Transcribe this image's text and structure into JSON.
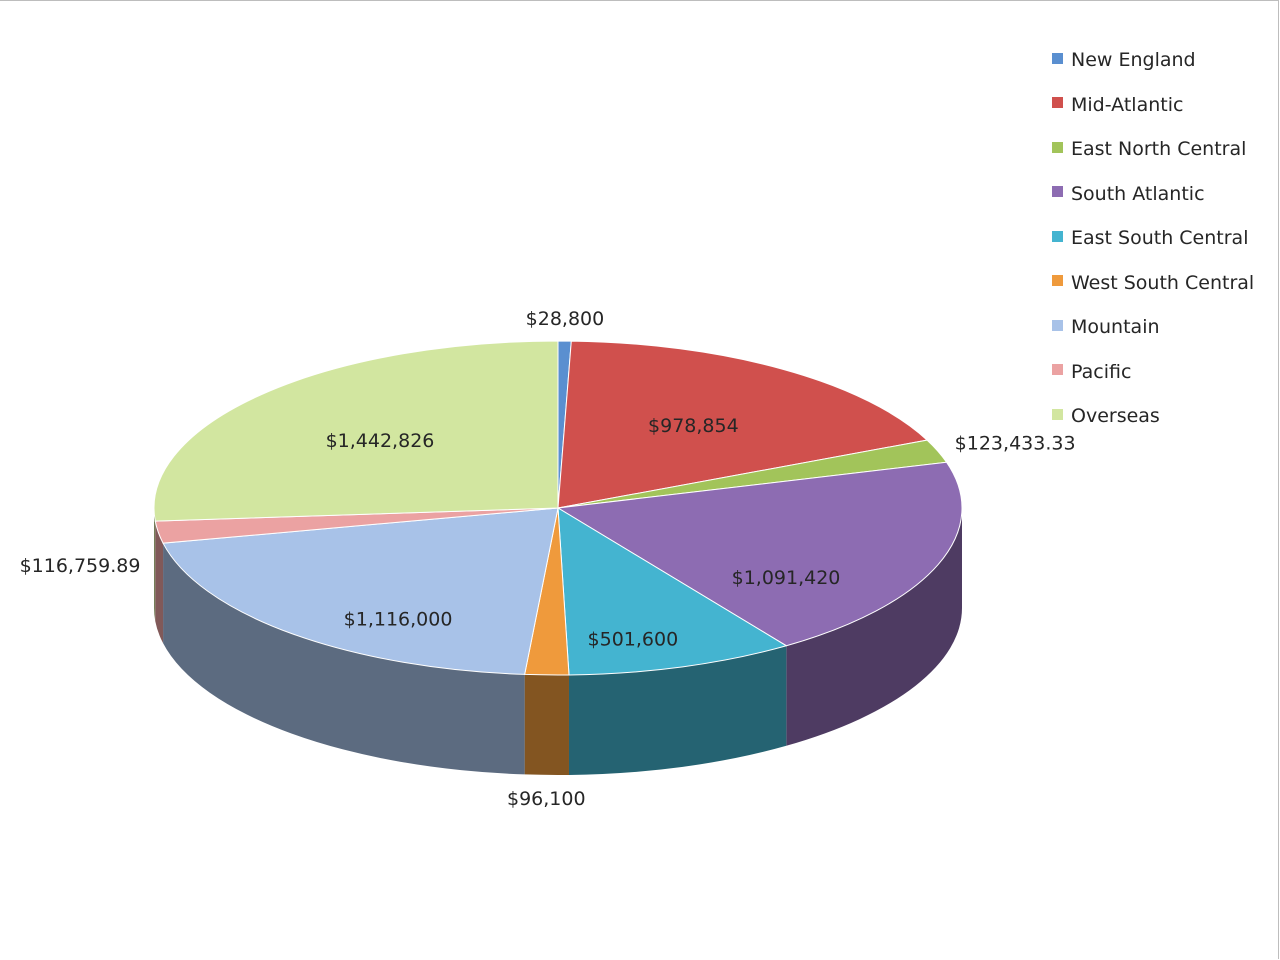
{
  "chart_data": {
    "type": "pie",
    "title": "",
    "style": "3d",
    "legend_position": "right",
    "categories": [
      "New England",
      "Mid-Atlantic",
      "East North Central",
      "South Atlantic",
      "East South Central",
      "West South Central",
      "Mountain",
      "Pacific",
      "Overseas"
    ],
    "values": [
      28800,
      978854,
      123433.33,
      1091420,
      501600,
      96100,
      1116000,
      116759.89,
      1442826
    ],
    "data_labels": [
      "$28,800",
      "$978,854",
      "$123,433.33",
      "$1,091,420",
      "$501,600",
      "$96,100",
      "$1,116,000",
      "$116,759.89",
      "$1,442,826"
    ],
    "colors": [
      "#5a8fd0",
      "#d0504d",
      "#a2c45a",
      "#8d6cb2",
      "#44b4d0",
      "#ef9a3c",
      "#a8c2e8",
      "#eba2a2",
      "#d2e6a0"
    ]
  }
}
